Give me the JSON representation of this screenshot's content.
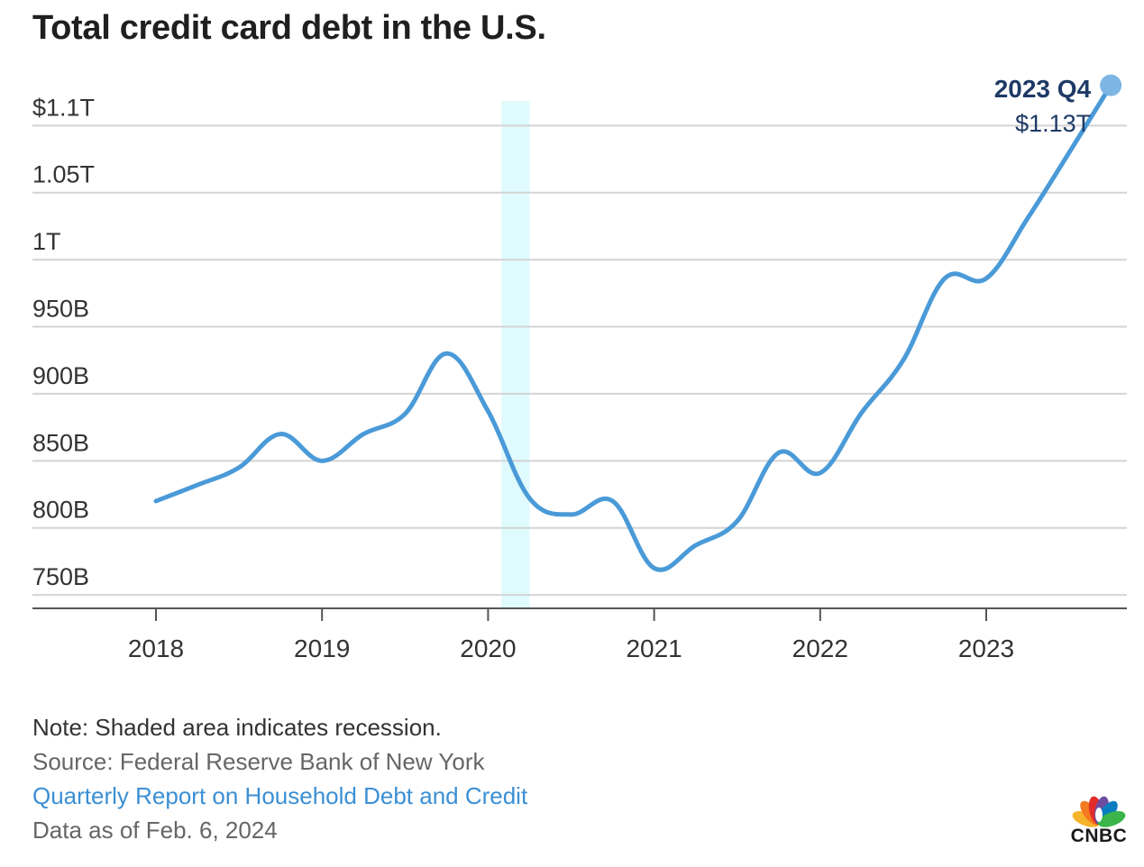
{
  "header": {
    "title": "Total credit card debt in the U.S."
  },
  "chart_data": {
    "type": "line",
    "title": "Total credit card debt in the U.S.",
    "x_unit": "year",
    "xlim": [
      2017.25,
      2024.0
    ],
    "ylim": [
      740,
      1150
    ],
    "yticks": [
      {
        "value": 750,
        "label": "750B"
      },
      {
        "value": 800,
        "label": "800B"
      },
      {
        "value": 850,
        "label": "850B"
      },
      {
        "value": 900,
        "label": "900B"
      },
      {
        "value": 950,
        "label": "950B"
      },
      {
        "value": 1000,
        "label": "1T"
      },
      {
        "value": 1050,
        "label": "1.05T"
      },
      {
        "value": 1100,
        "label": "$1.1T"
      }
    ],
    "xticks": [
      {
        "value": 2018,
        "label": "2018"
      },
      {
        "value": 2019,
        "label": "2019"
      },
      {
        "value": 2020,
        "label": "2020"
      },
      {
        "value": 2021,
        "label": "2021"
      },
      {
        "value": 2022,
        "label": "2022"
      },
      {
        "value": 2023,
        "label": "2023"
      }
    ],
    "grid": true,
    "recession": {
      "start": 2020.08,
      "end": 2020.25,
      "color": "#e0fbfd"
    },
    "line_color": "#4a9ad8",
    "series": [
      {
        "unit": "billions of dollars",
        "x": [
          2018.0,
          2018.25,
          2018.5,
          2018.75,
          2019.0,
          2019.25,
          2019.5,
          2019.75,
          2020.0,
          2020.25,
          2020.5,
          2020.75,
          2021.0,
          2021.25,
          2021.5,
          2021.75,
          2022.0,
          2022.25,
          2022.5,
          2022.75,
          2023.0,
          2023.25,
          2023.5,
          2023.75
        ],
        "values": [
          820,
          832,
          845,
          870,
          850,
          870,
          885,
          930,
          887,
          822,
          810,
          820,
          770,
          787,
          805,
          856,
          841,
          886,
          925,
          986,
          986,
          1031,
          1080,
          1130
        ]
      }
    ],
    "annotation": {
      "period": "2023 Q4",
      "value_label": "$1.13T"
    }
  },
  "footer": {
    "note": "Note: Shaded area indicates recession.",
    "source": "Source: Federal Reserve Bank of New York",
    "link_text": "Quarterly Report on Household Debt and Credit",
    "as_of": "Data as of Feb. 6, 2024"
  },
  "logo": {
    "text": "CNBC",
    "colors": [
      "#f6b32b",
      "#f47b20",
      "#e22c2a",
      "#6c4c9f",
      "#0a7dc1",
      "#3bb54a"
    ]
  }
}
